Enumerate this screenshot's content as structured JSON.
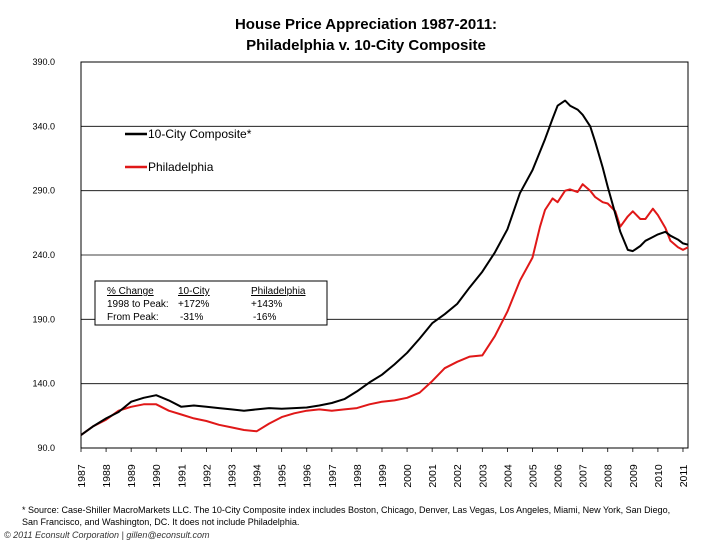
{
  "title_line1": "House Price Appreciation 1987-2011:",
  "title_line2": "Philadelphia v. 10-City Composite",
  "footnote_line1": "* Source: Case-Shiller MacroMarkets LLC.  The 10-City Composite index includes Boston, Chicago, Denver, Las Vegas, Los Angeles, Miami, New York, San Diego,",
  "footnote_line2": "San Francisco, and Washington, DC.  It does not include Philadelphia.",
  "credit": "© 2011 Econsult Corporation  |  gillen@econsult.com",
  "annotation": {
    "headers": [
      "% Change",
      "10-City",
      "Philadelphia"
    ],
    "rows": [
      [
        "1998 to Peak:",
        "+172%",
        "+143%"
      ],
      [
        "From Peak:",
        "-31%",
        "-16%"
      ]
    ]
  },
  "chart_data": {
    "type": "line",
    "title": "House Price Appreciation 1987-2011: Philadelphia v. 10-City Composite",
    "ylim": [
      90,
      390
    ],
    "yticks": [
      "90.0",
      "140.0",
      "190.0",
      "240.0",
      "290.0",
      "340.0",
      "390.0"
    ],
    "ytick_values": [
      90,
      140,
      190,
      240,
      290,
      340,
      390
    ],
    "xlim": [
      1987,
      2011.2
    ],
    "xticks": [
      "1987",
      "1988",
      "1989",
      "1990",
      "1991",
      "1992",
      "1993",
      "1994",
      "1995",
      "1996",
      "1997",
      "1998",
      "1999",
      "2000",
      "2001",
      "2002",
      "2003",
      "2004",
      "2005",
      "2006",
      "2007",
      "2008",
      "2009",
      "2010",
      "2011"
    ],
    "grid": true,
    "legend_position": "top-left",
    "series": [
      {
        "name": "10-City Composite*",
        "color": "#000000",
        "x": [
          1987.0,
          1987.5,
          1988.0,
          1988.5,
          1989.0,
          1989.5,
          1990.0,
          1990.5,
          1991.0,
          1991.5,
          1992.0,
          1992.5,
          1993.0,
          1993.5,
          1994.0,
          1994.5,
          1995.0,
          1995.5,
          1996.0,
          1996.5,
          1997.0,
          1997.5,
          1998.0,
          1998.5,
          1999.0,
          1999.5,
          2000.0,
          2000.5,
          2001.0,
          2001.5,
          2002.0,
          2002.5,
          2003.0,
          2003.5,
          2004.0,
          2004.5,
          2005.0,
          2005.5,
          2005.8,
          2006.0,
          2006.3,
          2006.5,
          2006.8,
          2007.0,
          2007.3,
          2007.5,
          2007.8,
          2008.0,
          2008.3,
          2008.5,
          2008.8,
          2009.0,
          2009.3,
          2009.5,
          2009.8,
          2010.0,
          2010.3,
          2010.5,
          2010.8,
          2011.0,
          2011.2
        ],
        "y": [
          100.0,
          107.0,
          113.0,
          118.0,
          126.0,
          129.0,
          131.0,
          127.0,
          122.0,
          123.0,
          122.0,
          121.0,
          120.0,
          119.0,
          120.0,
          121.0,
          120.5,
          121.0,
          121.5,
          123.0,
          125.0,
          128.0,
          134.0,
          141.0,
          147.0,
          155.0,
          164.0,
          175.0,
          187.0,
          194.0,
          202.0,
          215.0,
          227.0,
          242.0,
          260.0,
          288.0,
          306.0,
          330.0,
          346.0,
          356.0,
          360.0,
          356.0,
          353.0,
          349.0,
          340.0,
          328.0,
          308.0,
          293.0,
          272.0,
          258.0,
          244.0,
          243.0,
          247.0,
          251.0,
          254.0,
          256.0,
          258.0,
          255.0,
          252.0,
          249.0,
          248.0
        ]
      },
      {
        "name": "Philadelphia",
        "color": "#e01818",
        "x": [
          1987.0,
          1987.5,
          1988.0,
          1988.5,
          1989.0,
          1989.5,
          1990.0,
          1990.5,
          1991.0,
          1991.5,
          1992.0,
          1992.5,
          1993.0,
          1993.5,
          1994.0,
          1994.5,
          1995.0,
          1995.5,
          1996.0,
          1996.5,
          1997.0,
          1997.5,
          1998.0,
          1998.5,
          1999.0,
          1999.5,
          2000.0,
          2000.5,
          2001.0,
          2001.5,
          2002.0,
          2002.5,
          2003.0,
          2003.5,
          2004.0,
          2004.5,
          2005.0,
          2005.3,
          2005.5,
          2005.8,
          2006.0,
          2006.3,
          2006.5,
          2006.8,
          2007.0,
          2007.3,
          2007.5,
          2007.8,
          2008.0,
          2008.3,
          2008.5,
          2008.8,
          2009.0,
          2009.3,
          2009.5,
          2009.8,
          2010.0,
          2010.3,
          2010.5,
          2010.8,
          2011.0,
          2011.2
        ],
        "y": [
          100.0,
          107.0,
          112.0,
          119.0,
          122.0,
          124.0,
          124.0,
          119.0,
          116.0,
          113.0,
          111.0,
          108.0,
          106.0,
          104.0,
          103.0,
          109.0,
          114.0,
          117.0,
          119.0,
          120.0,
          119.0,
          120.0,
          121.0,
          124.0,
          126.0,
          127.0,
          129.0,
          133.0,
          142.0,
          152.0,
          157.0,
          161.0,
          162.0,
          177.0,
          196.0,
          220.0,
          238.0,
          262.0,
          275.0,
          284.0,
          281.0,
          290.0,
          291.0,
          289.0,
          295.0,
          290.0,
          285.0,
          281.0,
          280.0,
          274.0,
          262.0,
          270.0,
          274.0,
          268.0,
          268.0,
          276.0,
          271.0,
          261.0,
          251.0,
          246.0,
          244.0,
          246.0
        ]
      }
    ]
  }
}
